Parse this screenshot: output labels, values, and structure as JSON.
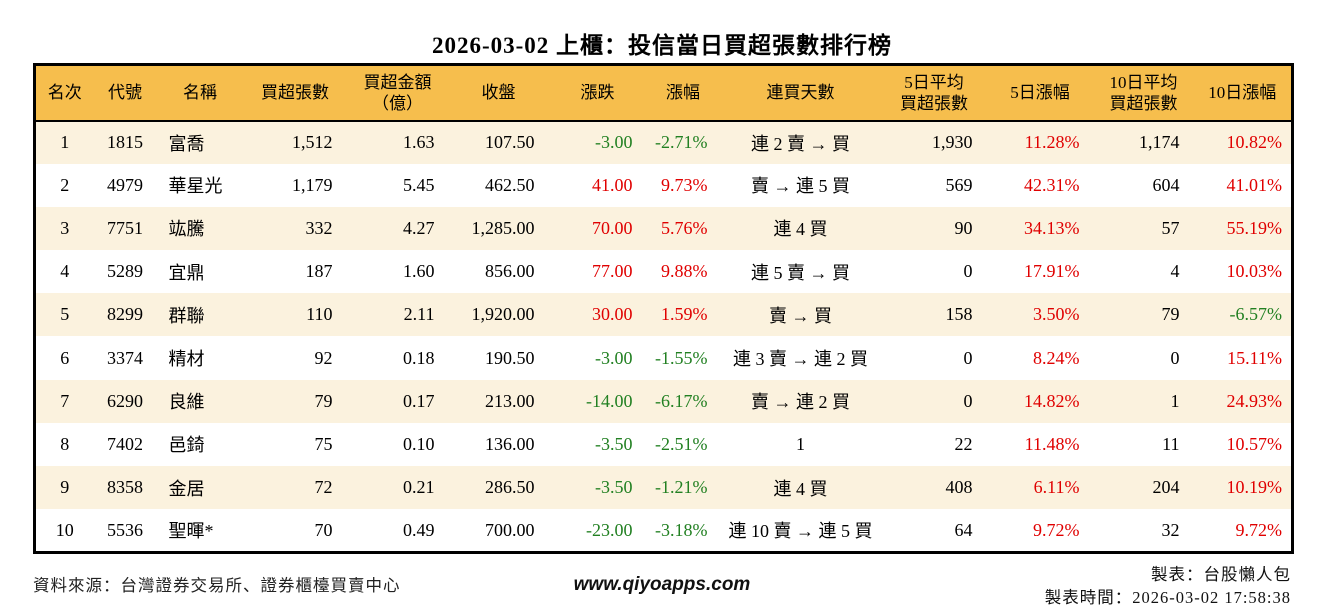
{
  "colors": {
    "up": "#e00000",
    "down": "#228022",
    "header_bg": "#f6be4d",
    "row_alt": "#fbf2de",
    "border": "#000000"
  },
  "chart_data": {
    "type": "table",
    "title": "2026-03-02 上櫃：投信當日買超張數排行榜",
    "columns": [
      {
        "key": "rank",
        "label": "名次"
      },
      {
        "key": "code",
        "label": "代號"
      },
      {
        "key": "name",
        "label": "名稱"
      },
      {
        "key": "net_buy",
        "label": "買超張數"
      },
      {
        "key": "amount",
        "label": "買超金額",
        "label2": "（億）"
      },
      {
        "key": "close",
        "label": "收盤"
      },
      {
        "key": "change",
        "label": "漲跌"
      },
      {
        "key": "change_pct",
        "label": "漲幅"
      },
      {
        "key": "streak",
        "label": "連買天數"
      },
      {
        "key": "avg5",
        "label": "5日平均",
        "label2": "買超張數"
      },
      {
        "key": "pct5",
        "label": "5日漲幅"
      },
      {
        "key": "avg10",
        "label": "10日平均",
        "label2": "買超張數"
      },
      {
        "key": "pct10",
        "label": "10日漲幅"
      }
    ],
    "rows": [
      {
        "rank": "1",
        "code": "1815",
        "name": "富喬",
        "net_buy": "1,512",
        "amount": "1.63",
        "close": "107.50",
        "change": "-3.00",
        "change_pct": "-2.71%",
        "streak": "連 2 賣 → 買",
        "avg5": "1,930",
        "pct5": "11.28%",
        "avg10": "1,174",
        "pct10": "10.82%"
      },
      {
        "rank": "2",
        "code": "4979",
        "name": "華星光",
        "net_buy": "1,179",
        "amount": "5.45",
        "close": "462.50",
        "change": "41.00",
        "change_pct": "9.73%",
        "streak": "賣 → 連 5 買",
        "avg5": "569",
        "pct5": "42.31%",
        "avg10": "604",
        "pct10": "41.01%"
      },
      {
        "rank": "3",
        "code": "7751",
        "name": "竑騰",
        "net_buy": "332",
        "amount": "4.27",
        "close": "1,285.00",
        "change": "70.00",
        "change_pct": "5.76%",
        "streak": "連 4 買",
        "avg5": "90",
        "pct5": "34.13%",
        "avg10": "57",
        "pct10": "55.19%"
      },
      {
        "rank": "4",
        "code": "5289",
        "name": "宜鼎",
        "net_buy": "187",
        "amount": "1.60",
        "close": "856.00",
        "change": "77.00",
        "change_pct": "9.88%",
        "streak": "連 5 賣 → 買",
        "avg5": "0",
        "pct5": "17.91%",
        "avg10": "4",
        "pct10": "10.03%"
      },
      {
        "rank": "5",
        "code": "8299",
        "name": "群聯",
        "net_buy": "110",
        "amount": "2.11",
        "close": "1,920.00",
        "change": "30.00",
        "change_pct": "1.59%",
        "streak": "賣 → 買",
        "avg5": "158",
        "pct5": "3.50%",
        "avg10": "79",
        "pct10": "-6.57%"
      },
      {
        "rank": "6",
        "code": "3374",
        "name": "精材",
        "net_buy": "92",
        "amount": "0.18",
        "close": "190.50",
        "change": "-3.00",
        "change_pct": "-1.55%",
        "streak": "連 3 賣 → 連 2 買",
        "avg5": "0",
        "pct5": "8.24%",
        "avg10": "0",
        "pct10": "15.11%"
      },
      {
        "rank": "7",
        "code": "6290",
        "name": "良維",
        "net_buy": "79",
        "amount": "0.17",
        "close": "213.00",
        "change": "-14.00",
        "change_pct": "-6.17%",
        "streak": "賣 → 連 2 買",
        "avg5": "0",
        "pct5": "14.82%",
        "avg10": "1",
        "pct10": "24.93%"
      },
      {
        "rank": "8",
        "code": "7402",
        "name": "邑錡",
        "net_buy": "75",
        "amount": "0.10",
        "close": "136.00",
        "change": "-3.50",
        "change_pct": "-2.51%",
        "streak": "1",
        "avg5": "22",
        "pct5": "11.48%",
        "avg10": "11",
        "pct10": "10.57%"
      },
      {
        "rank": "9",
        "code": "8358",
        "name": "金居",
        "net_buy": "72",
        "amount": "0.21",
        "close": "286.50",
        "change": "-3.50",
        "change_pct": "-1.21%",
        "streak": "連 4 買",
        "avg5": "408",
        "pct5": "6.11%",
        "avg10": "204",
        "pct10": "10.19%"
      },
      {
        "rank": "10",
        "code": "5536",
        "name": "聖暉*",
        "net_buy": "70",
        "amount": "0.49",
        "close": "700.00",
        "change": "-23.00",
        "change_pct": "-3.18%",
        "streak": "連 10 賣 → 連 5 買",
        "avg5": "64",
        "pct5": "9.72%",
        "avg10": "32",
        "pct10": "9.72%"
      }
    ]
  },
  "footer": {
    "source": "資料來源：台灣證券交易所、證券櫃檯買賣中心",
    "site": "www.qiyoapps.com",
    "maker": "製表：台股懶人包",
    "time": "製表時間：2026-03-02 17:58:38"
  }
}
